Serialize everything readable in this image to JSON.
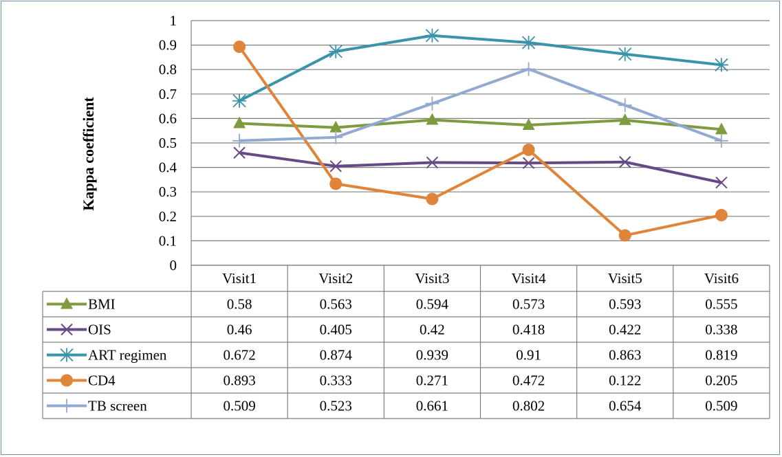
{
  "chart_data": {
    "type": "line",
    "title": "",
    "xlabel": "",
    "ylabel": "Kappa coefficient",
    "ylim": [
      0,
      1
    ],
    "yticks": [
      "0",
      "0.1",
      "0.2",
      "0.3",
      "0.4",
      "0.5",
      "0.6",
      "0.7",
      "0.8",
      "0.9",
      "1"
    ],
    "grid": true,
    "legend": "data-table-left",
    "categories": [
      "Visit1",
      "Visit2",
      "Visit3",
      "Visit4",
      "Visit5",
      "Visit6"
    ],
    "series": [
      {
        "name": "BMI",
        "color": "#7e9c3f",
        "marker": "triangle",
        "values": [
          0.58,
          0.563,
          0.594,
          0.573,
          0.593,
          0.555
        ],
        "labels": [
          "0.58",
          "0.563",
          "0.594",
          "0.573",
          "0.593",
          "0.555"
        ]
      },
      {
        "name": "OIS",
        "color": "#664a86",
        "marker": "x",
        "values": [
          0.46,
          0.405,
          0.42,
          0.418,
          0.422,
          0.338
        ],
        "labels": [
          "0.46",
          "0.405",
          "0.42",
          "0.418",
          "0.422",
          "0.338"
        ]
      },
      {
        "name": "ART regimen",
        "color": "#3a93ab",
        "marker": "star",
        "values": [
          0.672,
          0.874,
          0.939,
          0.91,
          0.863,
          0.819
        ],
        "labels": [
          "0.672",
          "0.874",
          "0.939",
          "0.91",
          "0.863",
          "0.819"
        ]
      },
      {
        "name": "CD4",
        "color": "#e0843a",
        "marker": "circle",
        "values": [
          0.893,
          0.333,
          0.271,
          0.472,
          0.122,
          0.205
        ],
        "labels": [
          "0.893",
          "0.333",
          "0.271",
          "0.472",
          "0.122",
          "0.205"
        ]
      },
      {
        "name": "TB screen",
        "color": "#92a9d1",
        "marker": "plus",
        "values": [
          0.509,
          0.523,
          0.661,
          0.802,
          0.654,
          0.509
        ],
        "labels": [
          "0.509",
          "0.523",
          "0.661",
          "0.802",
          "0.654",
          "0.509"
        ]
      }
    ]
  }
}
